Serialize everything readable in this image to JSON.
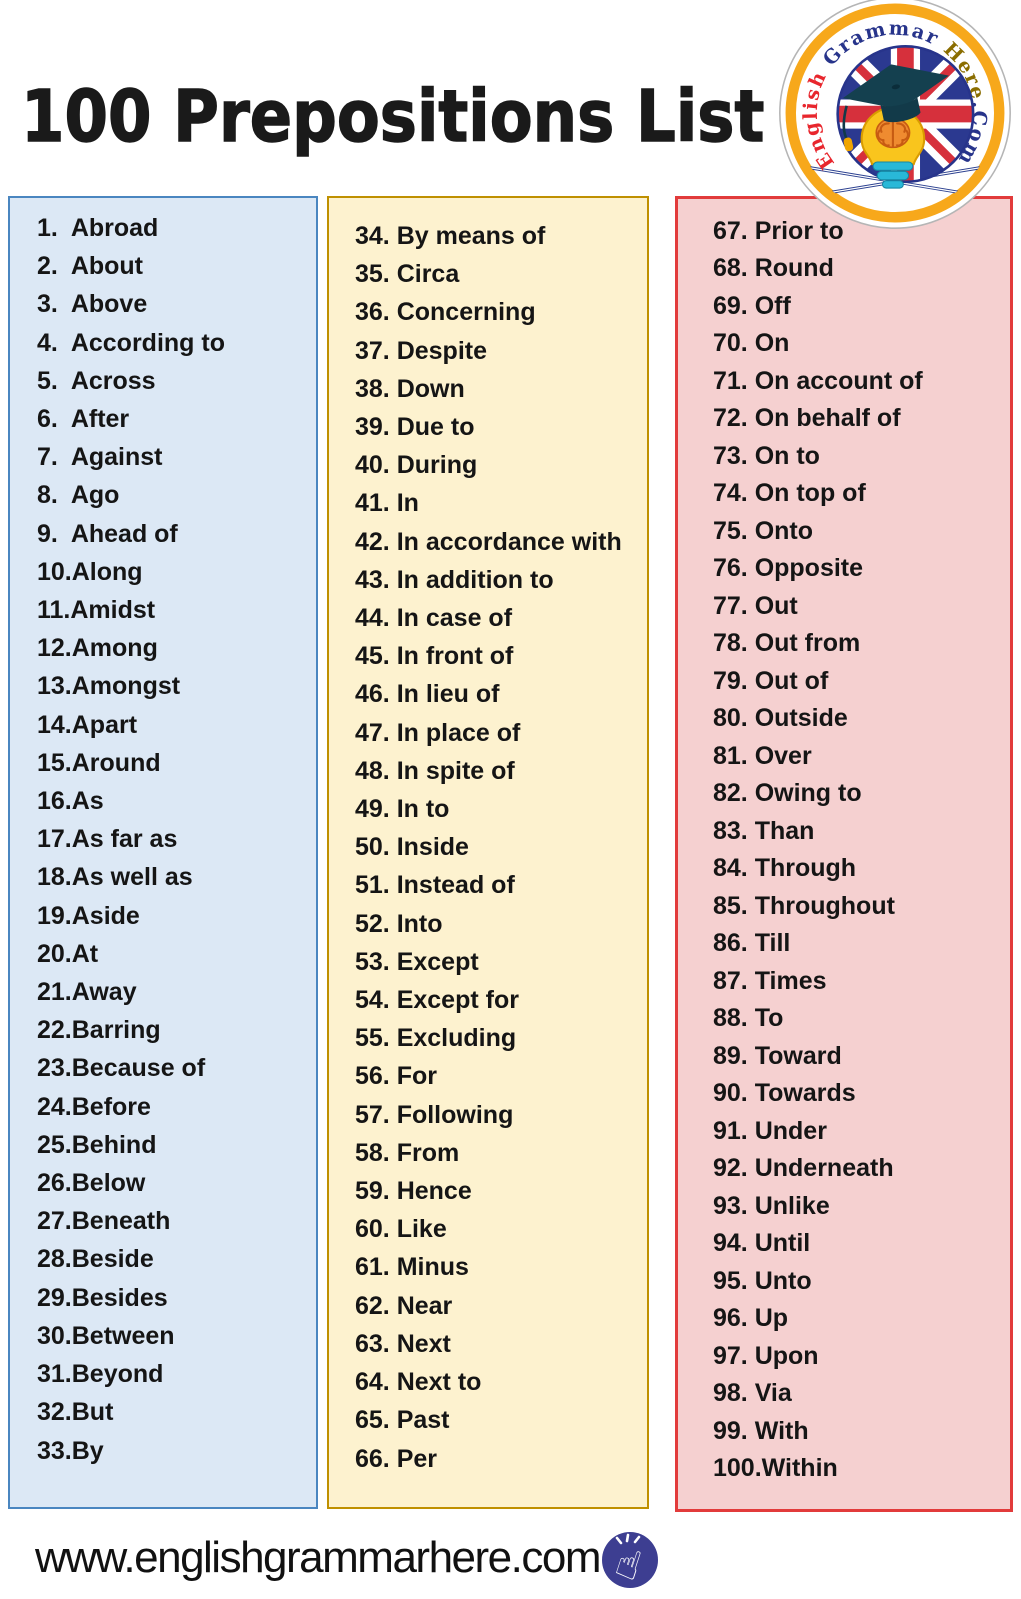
{
  "title": "100 Prepositions List",
  "logo": {
    "brand_text": "English Grammar Here.Com",
    "segments": [
      {
        "text": "English ",
        "color": "#e8262d"
      },
      {
        "text": "Grammar ",
        "color": "#27348b"
      },
      {
        "text": "Here",
        "color": "#8a6d00"
      },
      {
        "text": ".Com",
        "color": "#27348b"
      }
    ],
    "ring_color": "#f7a81b",
    "flag_blue": "#2b3990",
    "flag_red": "#d6303c"
  },
  "columns": [
    {
      "bg": "#dce8f5",
      "border": "#4a86c0",
      "items": [
        "1.  Abroad",
        "2.  About",
        "3.  Above",
        "4.  According to",
        "5.  Across",
        "6.  After",
        "7.  Against",
        "8.  Ago",
        "9.  Ahead of",
        "10.Along",
        "11.Amidst",
        "12.Among",
        "13.Amongst",
        "14.Apart",
        "15.Around",
        "16.As",
        "17.As far as",
        "18.As well as",
        "19.Aside",
        "20.At",
        "21.Away",
        "22.Barring",
        "23.Because of",
        "24.Before",
        "25.Behind",
        "26.Below",
        "27.Beneath",
        "28.Beside",
        "29.Besides",
        "30.Between",
        "31.Beyond",
        "32.But",
        "33.By"
      ]
    },
    {
      "bg": "#fdf2cf",
      "border": "#bf9000",
      "items": [
        "34. By means of",
        "35. Circa",
        "36. Concerning",
        "37. Despite",
        "38. Down",
        "39. Due to",
        "40. During",
        "41. In",
        "42. In accordance with",
        "43. In addition to",
        "44. In case of",
        "45. In front of",
        "46. In lieu of",
        "47. In place of",
        "48. In spite of",
        "49. In to",
        "50. Inside",
        "51. Instead of",
        "52. Into",
        "53. Except",
        "54. Except for",
        "55. Excluding",
        "56. For",
        "57. Following",
        "58. From",
        "59. Hence",
        "60. Like",
        "61. Minus",
        "62. Near",
        "63. Next",
        "64. Next to",
        "65. Past",
        "66. Per"
      ]
    },
    {
      "bg": "#f5d0d0",
      "border": "#e23b3b",
      "items": [
        "67. Prior to",
        "68. Round",
        "69. Off",
        "70. On",
        "71. On account of",
        "72. On behalf of",
        "73. On to",
        "74. On top of",
        "75. Onto",
        "76. Opposite",
        "77. Out",
        "78. Out from",
        "79. Out of",
        "80. Outside",
        "81. Over",
        "82. Owing to",
        "83. Than",
        "84. Through",
        "85. Throughout",
        "86. Till",
        "87. Times",
        "88. To",
        "89. Toward",
        "90. Towards",
        "91. Under",
        "92. Underneath",
        "93. Unlike",
        "94. Until",
        "95. Unto",
        "96. Up",
        "97. Upon",
        "98. Via",
        "99. With",
        "100.Within"
      ]
    }
  ],
  "footer": {
    "url": "www.englishgrammarhere.com",
    "icon": "click-hand-icon",
    "icon_bg": "#3d3e91"
  }
}
